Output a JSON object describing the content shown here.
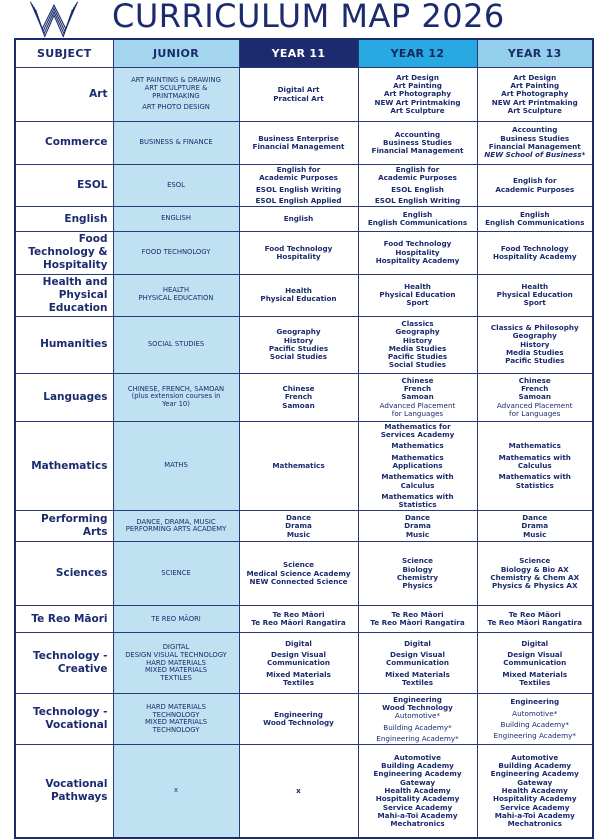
{
  "header": {
    "logo_icon": "w-stripes-logo",
    "title": "CURRICULUM MAP 2026"
  },
  "colors": {
    "navy": "#1b2b6d",
    "year12_cyan": "#29a9e1",
    "junior_header_blue": "#a3d6ee",
    "year13_header_blue": "#93cfeb",
    "junior_cell_blue": "#bfe1f2",
    "white": "#ffffff"
  },
  "table": {
    "columns": [
      {
        "label": "SUBJECT"
      },
      {
        "label": "JUNIOR"
      },
      {
        "label": "YEAR 11"
      },
      {
        "label": "YEAR 12"
      },
      {
        "label": "YEAR 13"
      }
    ],
    "rows": [
      {
        "subject": "Art",
        "junior": [
          {
            "t": "ART PAINTING & DRAWING\nART SCULPTURE &\nPRINTMAKING"
          },
          {
            "t": "ART PHOTO DESIGN",
            "g": true
          }
        ],
        "y11": [
          {
            "t": "Digital Art"
          },
          {
            "t": "Practical Art"
          }
        ],
        "y12": [
          {
            "t": "Art Design"
          },
          {
            "t": "Art Painting"
          },
          {
            "t": "Art Photography"
          },
          {
            "t": "NEW Art Printmaking"
          },
          {
            "t": "Art Sculpture"
          }
        ],
        "y13": [
          {
            "t": "Art Design"
          },
          {
            "t": "Art Painting"
          },
          {
            "t": "Art Photography"
          },
          {
            "t": "NEW Art Printmaking"
          },
          {
            "t": "Art Sculpture"
          }
        ]
      },
      {
        "subject": "Commerce",
        "junior": [
          {
            "t": "BUSINESS & FINANCE"
          }
        ],
        "y11": [
          {
            "t": "Business Enterprise"
          },
          {
            "t": "Financial Management"
          }
        ],
        "y12": [
          {
            "t": "Accounting"
          },
          {
            "t": "Business Studies"
          },
          {
            "t": "Financial Management"
          }
        ],
        "y13": [
          {
            "t": "Accounting"
          },
          {
            "t": "Business Studies"
          },
          {
            "t": "Financial Management"
          },
          {
            "t": "NEW School of Business*",
            "s": "bi"
          }
        ]
      },
      {
        "subject": "ESOL",
        "junior": [
          {
            "t": "ESOL"
          }
        ],
        "y11": [
          {
            "t": "English for\nAcademic Purposes"
          },
          {
            "t": "ESOL English Writing",
            "g": true
          },
          {
            "t": "ESOL English Applied",
            "g": true
          }
        ],
        "y12": [
          {
            "t": "English for\nAcademic Purposes"
          },
          {
            "t": "ESOL English",
            "g": true
          },
          {
            "t": "ESOL English Writing",
            "g": true
          }
        ],
        "y13": [
          {
            "t": "English for\nAcademic Purposes"
          }
        ]
      },
      {
        "subject": "English",
        "junior": [
          {
            "t": "ENGLISH"
          }
        ],
        "y11": [
          {
            "t": "English"
          }
        ],
        "y12": [
          {
            "t": "English"
          },
          {
            "t": "English Communications"
          }
        ],
        "y13": [
          {
            "t": "English"
          },
          {
            "t": "English Communications"
          }
        ]
      },
      {
        "subject": "Food\nTechnology &\nHospitality",
        "junior": [
          {
            "t": "FOOD TECHNOLOGY"
          }
        ],
        "y11": [
          {
            "t": "Food Technology"
          },
          {
            "t": "Hospitality"
          }
        ],
        "y12": [
          {
            "t": "Food Technology"
          },
          {
            "t": "Hospitality"
          },
          {
            "t": "Hospitality Academy"
          }
        ],
        "y13": [
          {
            "t": "Food Technology"
          },
          {
            "t": "Hospitality Academy"
          }
        ]
      },
      {
        "subject": "Health and\nPhysical\nEducation",
        "junior": [
          {
            "t": "HEALTH\nPHYSICAL EDUCATION"
          }
        ],
        "y11": [
          {
            "t": "Health"
          },
          {
            "t": "Physical Education"
          }
        ],
        "y12": [
          {
            "t": "Health"
          },
          {
            "t": "Physical Education"
          },
          {
            "t": "Sport"
          }
        ],
        "y13": [
          {
            "t": "Health"
          },
          {
            "t": "Physical Education"
          },
          {
            "t": "Sport"
          }
        ]
      },
      {
        "subject": "Humanities",
        "junior": [
          {
            "t": "SOCIAL STUDIES"
          }
        ],
        "y11": [
          {
            "t": "Geography"
          },
          {
            "t": "History"
          },
          {
            "t": "Pacific Studies"
          },
          {
            "t": "Social Studies"
          }
        ],
        "y12": [
          {
            "t": "Classics"
          },
          {
            "t": "Geography"
          },
          {
            "t": "History"
          },
          {
            "t": "Media Studies"
          },
          {
            "t": "Pacific Studies"
          },
          {
            "t": "Social Studies"
          }
        ],
        "y13": [
          {
            "t": "Classics & Philosophy"
          },
          {
            "t": "Geography"
          },
          {
            "t": "History"
          },
          {
            "t": "Media Studies"
          },
          {
            "t": "Pacific Studies"
          }
        ]
      },
      {
        "subject": "Languages",
        "junior": [
          {
            "t": "CHINESE, FRENCH, SAMOAN\n(plus extension courses in\nYear 10)"
          }
        ],
        "y11": [
          {
            "t": "Chinese"
          },
          {
            "t": "French"
          },
          {
            "t": "Samoan"
          }
        ],
        "y12": [
          {
            "t": "Chinese"
          },
          {
            "t": "French"
          },
          {
            "t": "Samoan"
          },
          {
            "t": "Advanced Placement\nfor Languages",
            "s": "rg"
          }
        ],
        "y13": [
          {
            "t": "Chinese"
          },
          {
            "t": "French"
          },
          {
            "t": "Samoan"
          },
          {
            "t": "Advanced Placement\nfor Languages",
            "s": "rg"
          }
        ]
      },
      {
        "subject": "Mathematics",
        "junior": [
          {
            "t": "MATHS"
          }
        ],
        "y11": [
          {
            "t": "Mathematics"
          }
        ],
        "y12": [
          {
            "t": "Mathematics for\nServices Academy"
          },
          {
            "t": "Mathematics",
            "g": true
          },
          {
            "t": "Mathematics\nApplications",
            "g": true
          },
          {
            "t": "Mathematics with\nCalculus",
            "g": true
          },
          {
            "t": "Mathematics with\nStatistics",
            "g": true
          }
        ],
        "y13": [
          {
            "t": "Mathematics"
          },
          {
            "t": "Mathematics with\nCalculus",
            "g": true
          },
          {
            "t": "Mathematics with\nStatistics",
            "g": true
          }
        ]
      },
      {
        "subject": "Performing\nArts",
        "junior": [
          {
            "t": "DANCE, DRAMA, MUSIC\nPERFORMING ARTS ACADEMY"
          }
        ],
        "y11": [
          {
            "t": "Dance"
          },
          {
            "t": "Drama"
          },
          {
            "t": "Music"
          }
        ],
        "y12": [
          {
            "t": "Dance"
          },
          {
            "t": "Drama"
          },
          {
            "t": "Music"
          }
        ],
        "y13": [
          {
            "t": "Dance"
          },
          {
            "t": "Drama"
          },
          {
            "t": "Music"
          }
        ]
      },
      {
        "subject": "Sciences",
        "junior": [
          {
            "t": "SCIENCE"
          }
        ],
        "y11": [
          {
            "t": "Science"
          },
          {
            "t": "Medical Science Academy"
          },
          {
            "t": "NEW Connected Science"
          }
        ],
        "y12": [
          {
            "t": "Science"
          },
          {
            "t": "Biology"
          },
          {
            "t": "Chemistry"
          },
          {
            "t": "Physics"
          }
        ],
        "y13": [
          {
            "t": "Science"
          },
          {
            "t": "Biology & Bio AX"
          },
          {
            "t": "Chemistry & Chem AX"
          },
          {
            "t": "Physics & Physics AX"
          }
        ]
      },
      {
        "subject": "Te Reo Māori",
        "junior": [
          {
            "t": "TE REO MĀORI"
          }
        ],
        "y11": [
          {
            "t": "Te Reo Māori"
          },
          {
            "t": "Te Reo Māori Rangatira"
          }
        ],
        "y12": [
          {
            "t": "Te Reo Māori"
          },
          {
            "t": "Te Reo Māori Rangatira"
          }
        ],
        "y13": [
          {
            "t": "Te Reo Māori"
          },
          {
            "t": "Te Reo Māori Rangatira"
          }
        ]
      },
      {
        "subject": "Technology -\nCreative",
        "junior": [
          {
            "t": "DIGITAL\nDESIGN VISUAL TECHNOLOGY\nHARD MATERIALS\nMIXED MATERIALS\nTEXTILES"
          }
        ],
        "y11": [
          {
            "t": "Digital"
          },
          {
            "t": "Design Visual\nCommunication",
            "g": true
          },
          {
            "t": "Mixed Materials",
            "g": true
          },
          {
            "t": "Textiles"
          }
        ],
        "y12": [
          {
            "t": "Digital"
          },
          {
            "t": "Design Visual\nCommunication",
            "g": true
          },
          {
            "t": "Mixed Materials",
            "g": true
          },
          {
            "t": "Textiles"
          }
        ],
        "y13": [
          {
            "t": "Digital"
          },
          {
            "t": "Design Visual\nCommunication",
            "g": true
          },
          {
            "t": "Mixed Materials",
            "g": true
          },
          {
            "t": "Textiles"
          }
        ]
      },
      {
        "subject": "Technology -\nVocational",
        "junior": [
          {
            "t": "HARD MATERIALS\nTECHNOLOGY\nMIXED MATERIALS\nTECHNOLOGY"
          }
        ],
        "y11": [
          {
            "t": "Engineering"
          },
          {
            "t": "Wood Technology"
          }
        ],
        "y12": [
          {
            "t": "Engineering"
          },
          {
            "t": "Wood Technology"
          },
          {
            "t": "Automotive*",
            "s": "rg"
          },
          {
            "t": "Building Academy*",
            "s": "rg",
            "g": true
          },
          {
            "t": "Engineering Academy*",
            "s": "rg",
            "g": true
          }
        ],
        "y13": [
          {
            "t": "Engineering"
          },
          {
            "t": "Automotive*",
            "s": "rg",
            "g": true
          },
          {
            "t": "Building Academy*",
            "s": "rg",
            "g": true
          },
          {
            "t": "Engineering Academy*",
            "s": "rg",
            "g": true
          }
        ]
      },
      {
        "subject": "Vocational\nPathways",
        "junior": [
          {
            "t": "x",
            "s": "rg"
          }
        ],
        "y11": [
          {
            "t": "x"
          }
        ],
        "y12": [
          {
            "t": "Automotive"
          },
          {
            "t": "Building Academy"
          },
          {
            "t": "Engineering Academy"
          },
          {
            "t": "Gateway"
          },
          {
            "t": "Health Academy"
          },
          {
            "t": "Hospitality Academy"
          },
          {
            "t": "Service Academy"
          },
          {
            "t": "Mahi-a-Toi Academy"
          },
          {
            "t": "Mechatronics"
          }
        ],
        "y13": [
          {
            "t": "Automotive"
          },
          {
            "t": "Building Academy"
          },
          {
            "t": "Engineering Academy"
          },
          {
            "t": "Gateway"
          },
          {
            "t": "Health Academy"
          },
          {
            "t": "Hospitality Academy"
          },
          {
            "t": "Service Academy"
          },
          {
            "t": "Mahi-a-Toi Academy"
          },
          {
            "t": "Mechatronics"
          }
        ]
      }
    ]
  }
}
